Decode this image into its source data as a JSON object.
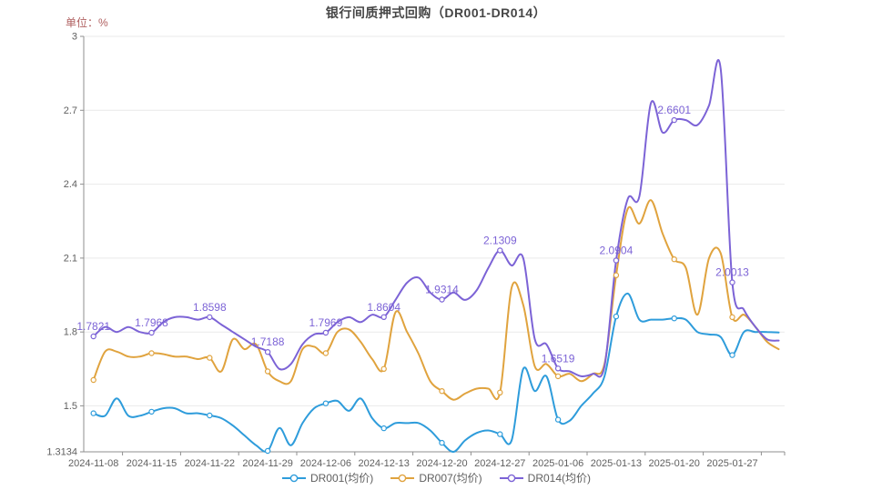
{
  "title": "银行间质押式回购（DR001-DR014）",
  "unit_label": "单位：%",
  "colors": {
    "title": "#464646",
    "unit": "#b06060",
    "grid": "#e9e9e9",
    "axis": "#8f8f8f",
    "axis_label": "#5f5f5f",
    "legend_text": "#5f5f5f",
    "annotation": "#7c63d6"
  },
  "chart_data": {
    "type": "line",
    "title": "银行间质押式回购（DR001-DR014）",
    "unit": "单位：%",
    "x_tick_labels": [
      "2024-11-08",
      "2024-11-15",
      "2024-11-22",
      "2024-11-29",
      "2024-12-06",
      "2024-12-13",
      "2024-12-20",
      "2024-12-27",
      "2025-01-06",
      "2025-01-13",
      "2025-01-20",
      "2025-01-27"
    ],
    "x_points_per_tick": 5,
    "n_points": 60,
    "ylim": [
      1.3134,
      3
    ],
    "ytick_labels": [
      "1.3134",
      "1.5",
      "1.8",
      "2.1",
      "2.4",
      "2.7",
      "3"
    ],
    "ytick_values": [
      1.3134,
      1.5,
      1.8,
      2.1,
      2.4,
      2.7,
      3
    ],
    "grid": true,
    "legend_position": "bottom",
    "series": [
      {
        "name": "DR001(均价)",
        "color": "#2e9cdb",
        "values": [
          1.47,
          1.46,
          1.53,
          1.46,
          1.46,
          1.476,
          1.49,
          1.49,
          1.47,
          1.47,
          1.461,
          1.45,
          1.42,
          1.38,
          1.34,
          1.317,
          1.41,
          1.34,
          1.43,
          1.49,
          1.51,
          1.52,
          1.48,
          1.53,
          1.45,
          1.409,
          1.43,
          1.43,
          1.43,
          1.4,
          1.35,
          1.3134,
          1.36,
          1.39,
          1.4,
          1.385,
          1.36,
          1.65,
          1.56,
          1.62,
          1.444,
          1.44,
          1.5,
          1.55,
          1.62,
          1.863,
          1.956,
          1.85,
          1.85,
          1.85,
          1.855,
          1.85,
          1.8,
          1.79,
          1.78,
          1.706,
          1.8,
          1.8,
          1.8,
          1.798
        ]
      },
      {
        "name": "DR007(均价)",
        "color": "#e0a33e",
        "values": [
          1.605,
          1.72,
          1.72,
          1.7,
          1.7,
          1.714,
          1.71,
          1.7,
          1.7,
          1.69,
          1.695,
          1.64,
          1.77,
          1.73,
          1.75,
          1.64,
          1.6,
          1.6,
          1.73,
          1.74,
          1.714,
          1.8,
          1.81,
          1.76,
          1.69,
          1.65,
          1.88,
          1.8,
          1.71,
          1.6,
          1.56,
          1.525,
          1.55,
          1.57,
          1.57,
          1.554,
          1.98,
          1.91,
          1.66,
          1.67,
          1.62,
          1.63,
          1.6,
          1.63,
          1.67,
          2.03,
          2.3,
          2.24,
          2.335,
          2.2,
          2.095,
          2.06,
          1.87,
          2.1,
          2.12,
          1.86,
          1.87,
          1.82,
          1.76,
          1.73
        ]
      },
      {
        "name": "DR014(均价)",
        "color": "#7c63d6",
        "values": [
          1.7821,
          1.82,
          1.8,
          1.82,
          1.8,
          1.7968,
          1.84,
          1.86,
          1.86,
          1.85,
          1.8598,
          1.83,
          1.8,
          1.77,
          1.74,
          1.7188,
          1.65,
          1.67,
          1.75,
          1.79,
          1.7969,
          1.84,
          1.86,
          1.84,
          1.87,
          1.8604,
          1.93,
          2.0,
          2.02,
          1.96,
          1.9314,
          1.96,
          1.93,
          1.97,
          2.06,
          2.1309,
          2.07,
          2.1,
          1.77,
          1.75,
          1.6519,
          1.64,
          1.62,
          1.63,
          1.66,
          2.0904,
          2.34,
          2.35,
          2.73,
          2.61,
          2.6601,
          2.66,
          2.64,
          2.72,
          2.87,
          2.0013,
          1.89,
          1.82,
          1.77,
          1.765
        ]
      }
    ],
    "annotations": {
      "series": "DR014(均价)",
      "every": 5,
      "labels": [
        "1.7821",
        "1.7968",
        "1.8598",
        "1.7188",
        "1.7969",
        "1.8604",
        "1.9314",
        "2.1309",
        "1.6519",
        "2.0904",
        "2.6601",
        "2.0013"
      ]
    },
    "marker_every": 5
  }
}
